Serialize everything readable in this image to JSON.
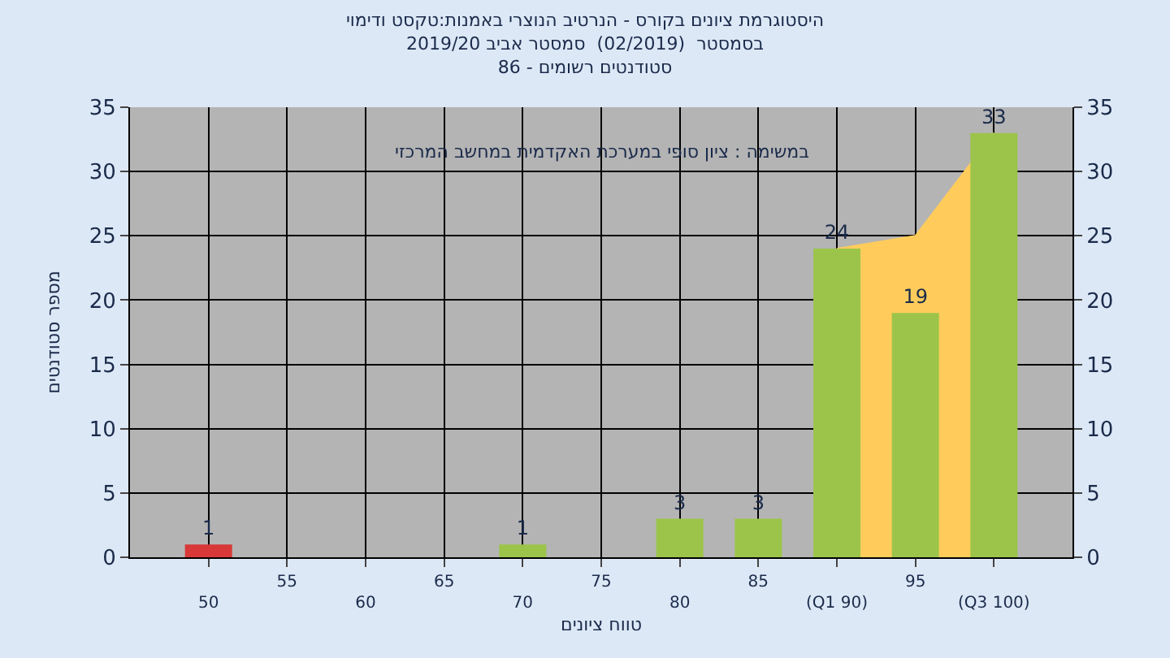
{
  "chart_data": {
    "type": "bar",
    "title": "היסטוגרמת ציונים בקורס - הנרטיב הנוצרי באמנות:טקסט ודימוי\nבסמסטר  (02/2019)  סמסטר אביב 2019/20\nסטודנטים רשומים - 86",
    "xlabel": "טווח ציונים",
    "ylabel": "מספר סטודנטים",
    "annotations": [
      "במשימה : ציון סופי במערכת האקדמית במחשב המרכזי"
    ],
    "categories": [
      "50",
      "55",
      "60",
      "65",
      "70",
      "75",
      "80",
      "85",
      "(Q1 90)",
      "95",
      "(Q3 100)"
    ],
    "series": [
      {
        "type": "area",
        "color": "#ffcc5c",
        "values": [
          null,
          null,
          null,
          null,
          null,
          null,
          null,
          null,
          24,
          25,
          33
        ]
      },
      {
        "colors": [
          "#d83838",
          "#9cc44a",
          "#9cc44a",
          "#9cc44a",
          "#9cc44a",
          "#9cc44a",
          "#9cc44a",
          "#9cc44a",
          "#9cc44a",
          "#9cc44a",
          "#9cc44a"
        ],
        "values": [
          1,
          0,
          0,
          0,
          1,
          0,
          3,
          3,
          24,
          19,
          33
        ],
        "value_labels": [
          "1",
          null,
          null,
          null,
          "1",
          null,
          "3",
          "3",
          "24",
          "19",
          "33"
        ]
      }
    ],
    "ylim": [
      0,
      35
    ],
    "yticks": [
      0,
      5,
      10,
      15,
      20,
      25,
      30,
      35
    ],
    "y2lim": [
      0,
      35
    ],
    "y2ticks": [
      0,
      5,
      10,
      15,
      20,
      25,
      30,
      35
    ],
    "grid": true
  }
}
